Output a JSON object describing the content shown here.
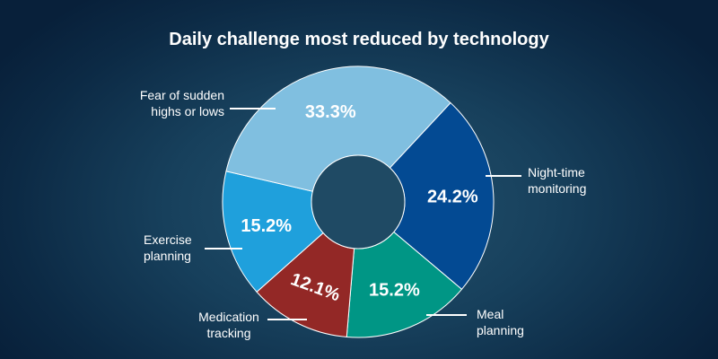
{
  "title": "Daily challenge most reduced by technology",
  "chart_data": {
    "type": "pie",
    "donut": true,
    "title": "Daily challenge most reduced by technology",
    "slices": [
      {
        "label": "Night-time monitoring",
        "line1": "Night-time",
        "line2": "monitoring",
        "value": 24.2,
        "display": "24.2%",
        "color": "#034a93"
      },
      {
        "label": "Meal planning",
        "line1": "Meal",
        "line2": "planning",
        "value": 15.2,
        "display": "15.2%",
        "color": "#009685"
      },
      {
        "label": "Medication tracking",
        "line1": "Medication",
        "line2": "tracking",
        "value": 12.1,
        "display": "12.1%",
        "color": "#932826"
      },
      {
        "label": "Exercise planning",
        "line1": "Exercise",
        "line2": "planning",
        "value": 15.2,
        "display": "15.2%",
        "color": "#1fa0dc"
      },
      {
        "label": "Fear of sudden highs or lows",
        "line1": "Fear of sudden",
        "line2": "highs or lows",
        "value": 33.3,
        "display": "33.3%",
        "color": "#80bfe0"
      }
    ]
  }
}
